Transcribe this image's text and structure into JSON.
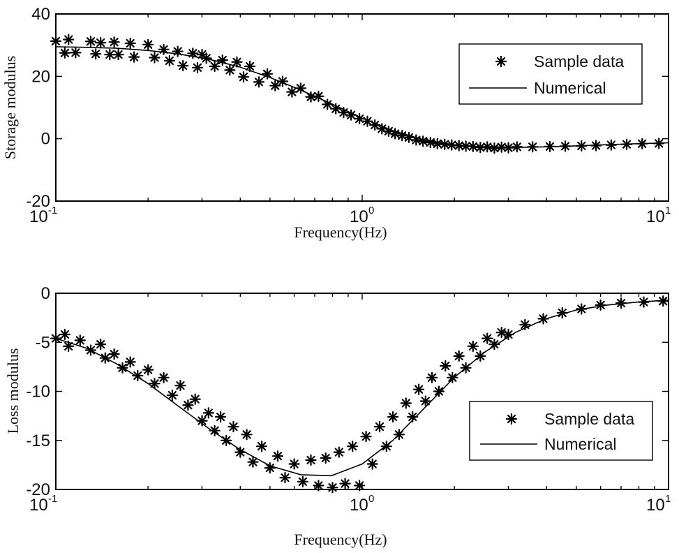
{
  "chart_data": [
    {
      "type": "scatter",
      "xlabel": "Frequency(Hz)",
      "ylabel": "Storage modulus",
      "xscale": "log",
      "xlim": [
        0.1,
        10
      ],
      "ylim": [
        -20,
        40
      ],
      "xticks": [
        {
          "value": 0.1,
          "base": "10",
          "exp": "-1"
        },
        {
          "value": 1,
          "base": "10",
          "exp": "0"
        },
        {
          "value": 10,
          "base": "10",
          "exp": "1"
        }
      ],
      "yticks": [
        {
          "value": 40,
          "label": "40"
        },
        {
          "value": 20,
          "label": "20"
        },
        {
          "value": 0,
          "label": "0"
        },
        {
          "value": -20,
          "label": "-20"
        }
      ],
      "legend_placement": "top-right",
      "series": [
        {
          "name": "Sample data",
          "style": "markers",
          "x": [
            0.1,
            0.107,
            0.11,
            0.116,
            0.13,
            0.135,
            0.14,
            0.15,
            0.155,
            0.16,
            0.175,
            0.18,
            0.2,
            0.21,
            0.225,
            0.235,
            0.25,
            0.26,
            0.28,
            0.29,
            0.3,
            0.31,
            0.33,
            0.35,
            0.37,
            0.39,
            0.41,
            0.43,
            0.46,
            0.49,
            0.52,
            0.55,
            0.59,
            0.63,
            0.68,
            0.72,
            0.77,
            0.82,
            0.87,
            0.92,
            0.98,
            1.04,
            1.1,
            1.16,
            1.22,
            1.28,
            1.35,
            1.42,
            1.5,
            1.58,
            1.67,
            1.76,
            1.86,
            1.96,
            2.07,
            2.18,
            2.3,
            2.43,
            2.56,
            2.7,
            2.85,
            3.0,
            3.2,
            3.6,
            4.1,
            4.6,
            5.2,
            5.8,
            6.5,
            7.3,
            8.2,
            9.3
          ],
          "y": [
            31.3,
            27.5,
            31.8,
            27.6,
            31.2,
            27.2,
            30.8,
            27.0,
            31.0,
            27.0,
            30.6,
            26.2,
            30.2,
            26.0,
            28.6,
            25.0,
            28.0,
            23.4,
            27.4,
            22.8,
            27.0,
            25.8,
            23.2,
            25.2,
            22.0,
            24.6,
            19.8,
            23.2,
            18.2,
            20.8,
            17.0,
            18.4,
            15.0,
            16.2,
            13.4,
            13.6,
            11.0,
            9.6,
            8.4,
            7.6,
            6.4,
            5.6,
            4.4,
            3.2,
            2.4,
            1.6,
            1.0,
            0.4,
            -0.4,
            -0.8,
            -1.2,
            -1.6,
            -1.8,
            -2.0,
            -2.2,
            -2.4,
            -2.5,
            -2.8,
            -2.6,
            -3.0,
            -2.7,
            -2.9,
            -2.6,
            -2.6,
            -2.5,
            -2.4,
            -2.3,
            -2.2,
            -2.0,
            -1.8,
            -1.6,
            -1.5
          ]
        },
        {
          "name": "Numerical",
          "style": "line",
          "x": [
            0.1,
            0.126,
            0.158,
            0.2,
            0.251,
            0.316,
            0.398,
            0.501,
            0.631,
            0.794,
            1.0,
            1.259,
            1.585,
            1.995,
            2.512,
            3.162,
            3.981,
            5.012,
            6.31,
            7.943,
            10.0
          ],
          "y": [
            29.5,
            29.3,
            29.0,
            28.3,
            27.2,
            25.5,
            23.0,
            19.6,
            15.6,
            11.2,
            6.6,
            2.6,
            -0.3,
            -2.0,
            -2.7,
            -2.8,
            -2.6,
            -2.3,
            -1.9,
            -1.6,
            -1.3
          ]
        }
      ]
    },
    {
      "type": "scatter",
      "xlabel": "Frequency(Hz)",
      "ylabel": "Loss modulus",
      "xscale": "log",
      "xlim": [
        0.1,
        10
      ],
      "ylim": [
        -20,
        0
      ],
      "xticks": [
        {
          "value": 0.1,
          "base": "10",
          "exp": "-1"
        },
        {
          "value": 1,
          "base": "10",
          "exp": "0"
        },
        {
          "value": 10,
          "base": "10",
          "exp": "1"
        }
      ],
      "yticks": [
        {
          "value": 0,
          "label": "0"
        },
        {
          "value": -5,
          "label": "-5"
        },
        {
          "value": -10,
          "label": "-10"
        },
        {
          "value": -15,
          "label": "-15"
        },
        {
          "value": -20,
          "label": "-20"
        }
      ],
      "legend_placement": "bottom-right",
      "series": [
        {
          "name": "Sample data",
          "style": "markers",
          "x": [
            0.1,
            0.107,
            0.11,
            0.12,
            0.13,
            0.14,
            0.145,
            0.155,
            0.165,
            0.175,
            0.185,
            0.2,
            0.21,
            0.225,
            0.24,
            0.255,
            0.27,
            0.285,
            0.3,
            0.315,
            0.33,
            0.345,
            0.36,
            0.38,
            0.4,
            0.42,
            0.44,
            0.47,
            0.5,
            0.53,
            0.56,
            0.6,
            0.64,
            0.68,
            0.72,
            0.76,
            0.8,
            0.84,
            0.88,
            0.93,
            0.98,
            1.03,
            1.08,
            1.14,
            1.2,
            1.26,
            1.32,
            1.39,
            1.46,
            1.53,
            1.61,
            1.69,
            1.78,
            1.87,
            1.97,
            2.07,
            2.18,
            2.3,
            2.43,
            2.56,
            2.7,
            2.85,
            3.0,
            3.4,
            3.9,
            4.5,
            5.2,
            6.0,
            7.0,
            8.3,
            9.6
          ],
          "y": [
            -4.6,
            -4.2,
            -5.4,
            -4.8,
            -5.8,
            -5.2,
            -6.6,
            -6.2,
            -7.6,
            -7.0,
            -8.4,
            -7.8,
            -9.2,
            -8.6,
            -10.4,
            -9.4,
            -11.4,
            -10.8,
            -13.0,
            -12.2,
            -14.0,
            -12.6,
            -15.0,
            -13.6,
            -16.2,
            -14.4,
            -17.2,
            -15.6,
            -17.8,
            -16.6,
            -18.8,
            -17.4,
            -19.2,
            -17.0,
            -19.6,
            -16.8,
            -19.8,
            -16.2,
            -19.4,
            -15.6,
            -19.6,
            -14.6,
            -17.4,
            -13.6,
            -15.6,
            -12.6,
            -14.4,
            -11.2,
            -12.6,
            -9.8,
            -11.0,
            -8.6,
            -10.0,
            -7.4,
            -8.6,
            -6.4,
            -7.6,
            -5.4,
            -6.4,
            -4.6,
            -5.2,
            -4.0,
            -4.2,
            -3.2,
            -2.6,
            -2.0,
            -1.6,
            -1.2,
            -1.0,
            -0.9,
            -0.8
          ]
        },
        {
          "name": "Numerical",
          "style": "line",
          "x": [
            0.1,
            0.126,
            0.158,
            0.2,
            0.251,
            0.316,
            0.398,
            0.501,
            0.631,
            0.794,
            1.0,
            1.259,
            1.585,
            1.995,
            2.512,
            3.162,
            3.981,
            5.012,
            6.31,
            7.943,
            10.0
          ],
          "y": [
            -4.6,
            -5.6,
            -7.2,
            -9.2,
            -11.5,
            -13.8,
            -15.9,
            -17.6,
            -18.5,
            -18.6,
            -17.4,
            -15.0,
            -11.8,
            -8.6,
            -6.0,
            -4.0,
            -2.6,
            -1.7,
            -1.2,
            -0.9,
            -0.7
          ]
        }
      ]
    }
  ]
}
